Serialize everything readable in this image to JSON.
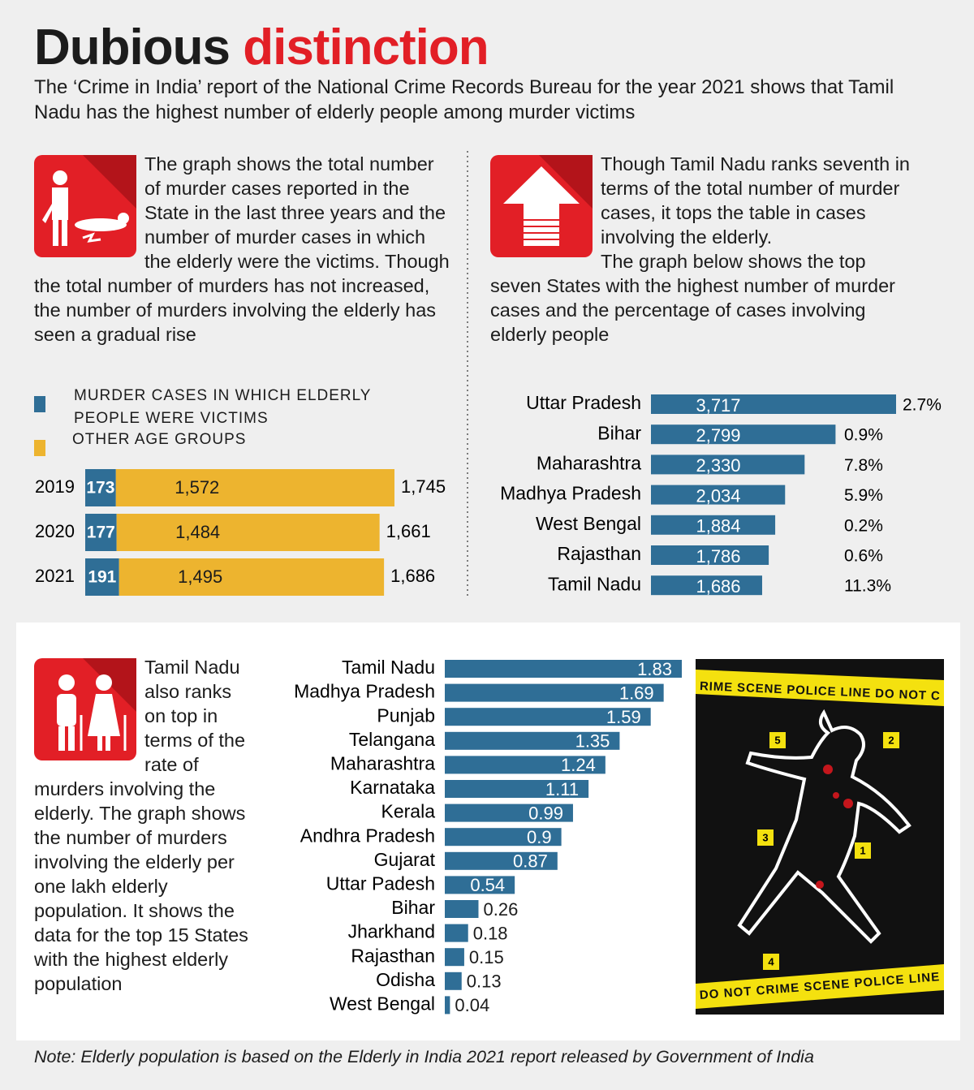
{
  "title_parts": [
    "Dubious",
    "distinction"
  ],
  "subtitle": "The ‘Crime in India’ report of the National Crime Records Bureau for the year 2021 shows that Tamil Nadu has the highest number of elderly people among murder victims",
  "panel_texts": [
    "The graph shows the total number of murder cases reported in the State in the last three years and the number of murder cases in which the elderly were the victims. Though the total number of murders has not increased, the number of murders involving the elderly has seen a gradual rise",
    "Though Tamil Nadu ranks seventh in terms of the total number of murder cases, it tops the table in cases involving the elderly.",
    "The graph below shows the top seven States with the highest number of murder cases and the percentage of cases involving elderly people",
    "Tamil Nadu also ranks on top in terms of the rate of murders involving the elderly. The graph shows the number of murders involving the elderly per one lakh elderly population. It shows the data for the top 15 States with the highest elderly population"
  ],
  "image_texts": [
    "RIME SCENE  POLICE LINE DO NOT C",
    "DO NOT CRIME SCENE  POLICE LINE"
  ],
  "image_markers": [
    "5",
    "2",
    "3",
    "1",
    "4"
  ],
  "note": "Note: Elderly population is based on the Elderly in India 2021 report released by Government of India",
  "chart_data": [
    {
      "type": "stacked_bar_h",
      "categories": [
        "2019",
        "2020",
        "2021"
      ],
      "series": [
        {
          "name": "MURDER CASES IN WHICH ELDERLY PEOPLE WERE VICTIMS",
          "color": "#2f6e96",
          "values": [
            173,
            177,
            191
          ]
        },
        {
          "name": "OTHER AGE GROUPS",
          "color": "#edb42f",
          "values": [
            1572,
            1484,
            1495
          ],
          "value_labels": [
            "1,572",
            "1,484",
            "1,495"
          ]
        }
      ],
      "totals": [
        1745,
        1661,
        1686
      ],
      "total_labels": [
        "1,745",
        "1,661",
        "1,686"
      ]
    },
    {
      "type": "bar_h",
      "color": "#2f6e96",
      "categories": [
        "Uttar Pradesh",
        "Bihar",
        "Maharashtra",
        "Madhya Pradesh",
        "West Bengal",
        "Rajasthan",
        "Tamil Nadu"
      ],
      "values": [
        3717,
        2799,
        2330,
        2034,
        1884,
        1786,
        1686
      ],
      "value_labels": [
        "3,717",
        "2,799",
        "2,330",
        "2,034",
        "1,884",
        "1,786",
        "1,686"
      ],
      "shares": [
        2.7,
        0.9,
        7.8,
        5.9,
        0.2,
        0.6,
        11.3
      ],
      "share_labels": [
        "2.7%",
        "0.9%",
        "7.8%",
        "5.9%",
        "0.2%",
        "0.6%",
        "11.3%"
      ]
    },
    {
      "type": "bar_h",
      "color": "#2f6e96",
      "categories": [
        "Tamil Nadu",
        "Madhya Pradesh",
        "Punjab",
        "Telangana",
        "Maharashtra",
        "Karnataka",
        "Kerala",
        "Andhra Pradesh",
        "Gujarat",
        "Uttar Padesh",
        "Bihar",
        "Jharkhand",
        "Rajasthan",
        "Odisha",
        "West Bengal"
      ],
      "values": [
        1.83,
        1.69,
        1.59,
        1.35,
        1.24,
        1.11,
        0.99,
        0.9,
        0.87,
        0.54,
        0.26,
        0.18,
        0.15,
        0.13,
        0.04
      ]
    }
  ]
}
